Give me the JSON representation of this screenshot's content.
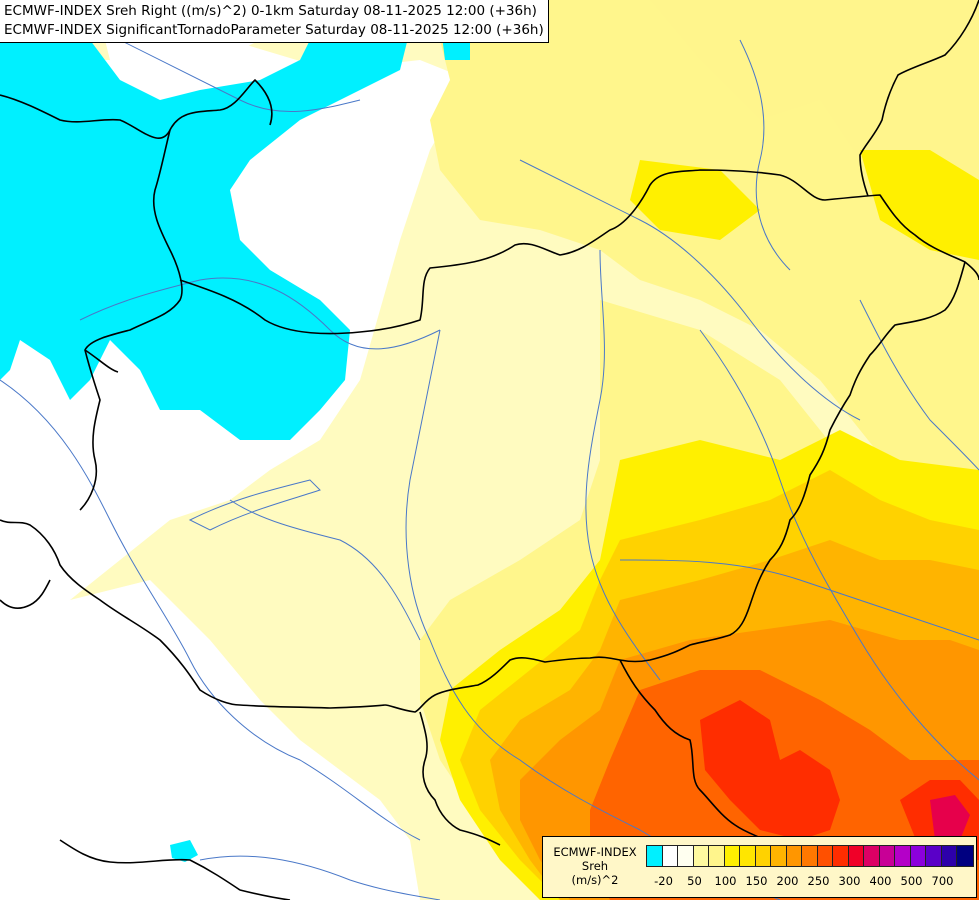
{
  "header": {
    "line1": "ECMWF-INDEX Sreh Right ((m/s)^2) 0-1km Saturday 08-11-2025 12:00 (+36h)",
    "line2": "ECMWF-INDEX SignificantTornadoParameter Saturday 08-11-2025 12:00 (+36h)"
  },
  "legend": {
    "title_lines": [
      "ECMWF-INDEX",
      "Sreh",
      "(m/s)^2"
    ],
    "swatches": [
      "#00f0ff",
      "#ffffff",
      "#fffff0",
      "#fffaa0",
      "#fff58c",
      "#fff000",
      "#ffe600",
      "#ffd200",
      "#ffb400",
      "#ff9600",
      "#ff7800",
      "#ff5000",
      "#ff2d00",
      "#f00028",
      "#dc0064",
      "#c80096",
      "#b400c8",
      "#8c00dc",
      "#5a00c8",
      "#2d00aa",
      "#000080"
    ],
    "tick_labels": [
      "-20",
      "50",
      "100",
      "150",
      "200",
      "250",
      "300",
      "400",
      "500",
      "700"
    ]
  },
  "colors": {
    "cyan": "#00f0ff",
    "white": "#ffffff",
    "pale": "#fffbc0",
    "light_yellow": "#fff68c",
    "yellow": "#fff000",
    "gold": "#ffd200",
    "orange": "#ffb400",
    "dark_orange": "#ff9600",
    "red_orange": "#ff6400",
    "red": "#ff2d00",
    "crimson": "#e6004b",
    "border": "#000000",
    "river": "#4a78c8"
  }
}
